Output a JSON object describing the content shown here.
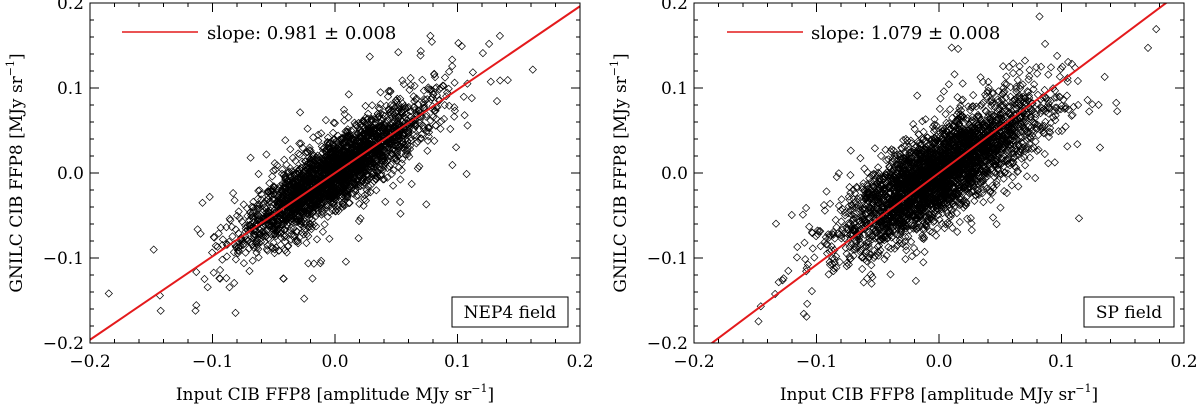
{
  "chart_data": [
    {
      "type": "scatter",
      "panel": "left",
      "xlabel": "Input CIB FFP8 [amplitude MJy sr",
      "xlabel_sup": "−1",
      "xlabel_end": "]",
      "ylabel": "GNILC CIB FFP8 [MJy sr",
      "ylabel_sup": "−1",
      "ylabel_end": "]",
      "xlim": [
        -0.2,
        0.2
      ],
      "ylim": [
        -0.2,
        0.2
      ],
      "xticks": [
        -0.2,
        -0.1,
        0.0,
        0.1,
        0.2
      ],
      "xtick_labels": [
        "−0.2",
        "−0.1",
        "0.0",
        "0.1",
        "0.2"
      ],
      "yticks": [
        -0.2,
        -0.1,
        0.0,
        0.1,
        0.2
      ],
      "ytick_labels": [
        "−0.2",
        "−0.1",
        "0.0",
        "0.1",
        "0.2"
      ],
      "legend": {
        "label": "slope: 0.981 ± 0.008",
        "color": "#e41a1c",
        "position": "top-left"
      },
      "annotation": "NEP4 field",
      "fit_line": {
        "slope": 0.981,
        "intercept": 0.0,
        "color": "#e41a1c"
      },
      "marker": "diamond",
      "scatter_params": {
        "n": 2600,
        "x_std": 0.035,
        "slope": 0.95,
        "noise": 0.02,
        "seed": 11,
        "outliers": 220
      }
    },
    {
      "type": "scatter",
      "panel": "right",
      "xlabel": "Input CIB FFP8 [amplitude MJy sr",
      "xlabel_sup": "−1",
      "xlabel_end": "]",
      "ylabel": "GNILC CIB FFP8 [MJy sr",
      "ylabel_sup": "−1",
      "ylabel_end": "]",
      "xlim": [
        -0.2,
        0.2
      ],
      "ylim": [
        -0.2,
        0.2
      ],
      "xticks": [
        -0.2,
        -0.1,
        0.0,
        0.1,
        0.2
      ],
      "xtick_labels": [
        "−0.2",
        "−0.1",
        "0.0",
        "0.1",
        "0.2"
      ],
      "yticks": [
        -0.2,
        -0.1,
        0.0,
        0.1,
        0.2
      ],
      "ytick_labels": [
        "−0.2",
        "−0.1",
        "0.0",
        "0.1",
        "0.2"
      ],
      "legend": {
        "label": "slope: 1.079 ± 0.008",
        "color": "#e41a1c",
        "position": "top-left"
      },
      "annotation": "SP field",
      "fit_line": {
        "slope": 1.079,
        "intercept": 0.0,
        "color": "#e41a1c"
      },
      "marker": "diamond",
      "scatter_params": {
        "n": 3400,
        "x_std": 0.04,
        "slope": 0.85,
        "noise": 0.026,
        "seed": 29,
        "outliers": 120
      }
    }
  ]
}
